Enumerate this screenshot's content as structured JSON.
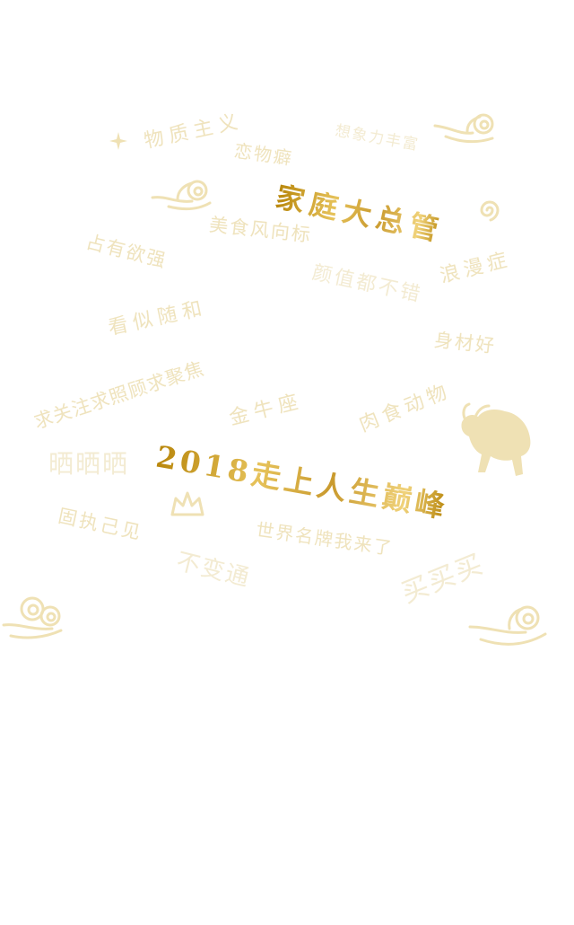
{
  "words": {
    "materialism": "物质主义",
    "imagination": "想象力丰富",
    "fetish": "恋物癖",
    "housekeeper": "家庭大总管",
    "aesthetic": "美食风向标",
    "possessive": "占有欲强",
    "romantic": "浪漫症",
    "good_looks": "颜值都不错",
    "casual": "看似随和",
    "good_figure": "身材好",
    "attention": "求关注求照顾求聚焦",
    "taurus": "金牛座",
    "carnivore": "肉食动物",
    "show_off": "晒晒晒",
    "peak": "2018走上人生巅峰",
    "stubborn": "固执己见",
    "brands": "世界名牌我来了",
    "inflexible": "不变通",
    "buy": "买买买"
  },
  "icons": [
    "sparkle-icon",
    "cloud-icon",
    "cloud-icon",
    "spiral-icon",
    "bull-icon",
    "crown-icon",
    "cloud-icon",
    "cloud-icon"
  ]
}
